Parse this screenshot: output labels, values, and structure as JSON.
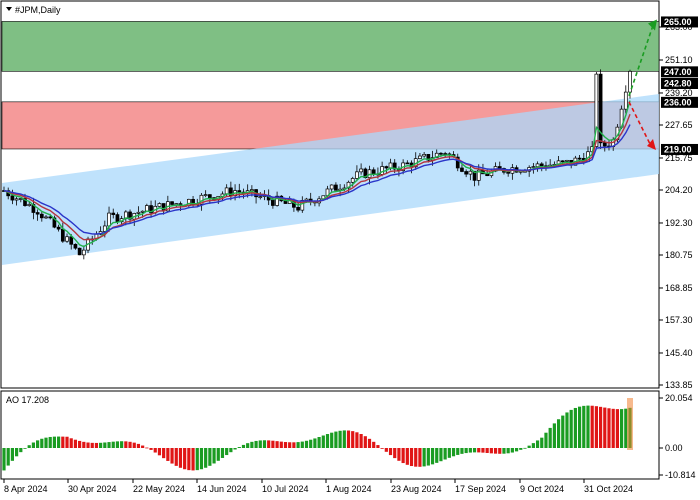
{
  "window": {
    "title": "#JPM,Daily",
    "menu_icon": "triangle-down-icon"
  },
  "colors": {
    "green_zone": "#7fbf84",
    "red_zone": "#f59a9a",
    "channel": "#a9d8fb",
    "ma_green": "#22b14c",
    "ma_red": "#b5353e",
    "ma_blue": "#2a35c9",
    "arrow_up": "#1a9c22",
    "arrow_down": "#e01515",
    "ao_up": "#1a9c22",
    "ao_down": "#e01515",
    "price_box": "#000000"
  },
  "price_axis": {
    "ticks": [
      "263.00",
      "251.10",
      "239.20",
      "227.65",
      "215.75",
      "204.20",
      "192.30",
      "180.75",
      "168.85",
      "157.30",
      "145.40",
      "133.85"
    ]
  },
  "price_boxes": [
    {
      "label": "265.00",
      "value": 265.0
    },
    {
      "label": "247.00",
      "value": 247.0
    },
    {
      "label": "242.80",
      "value": 242.8
    },
    {
      "label": "236.00",
      "value": 236.0
    },
    {
      "label": "219.00",
      "value": 219.0
    }
  ],
  "zones": {
    "green": {
      "from": 247.0,
      "to": 265.0
    },
    "red": {
      "from": 219.0,
      "to": 236.0
    }
  },
  "time_axis": {
    "labels": [
      "8 Apr 2024",
      "30 Apr 2024",
      "22 May 2024",
      "14 Jun 2024",
      "10 Jul 2024",
      "1 Aug 2024",
      "23 Aug 2024",
      "17 Sep 2024",
      "9 Oct 2024",
      "31 Oct 2024"
    ]
  },
  "indicator": {
    "name": "AO 17.208",
    "ticks": [
      "20.054",
      "0.00",
      "-10.814"
    ]
  }
}
